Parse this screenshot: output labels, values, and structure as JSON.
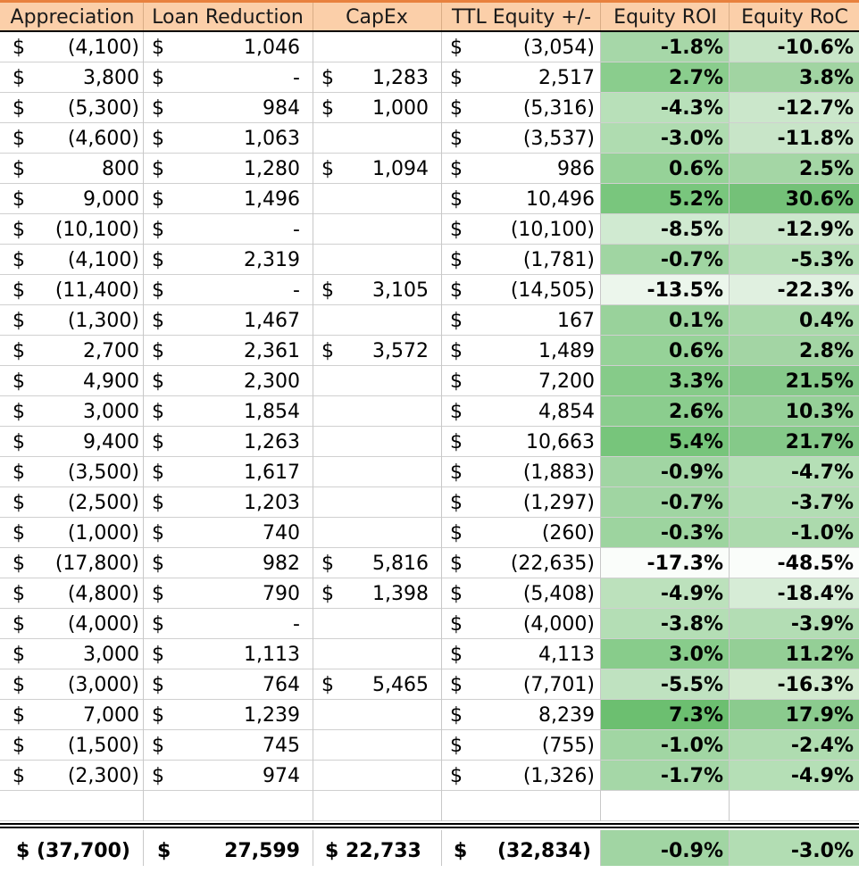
{
  "headers": [
    "Appreciation",
    "Loan Reduction",
    "CapEx",
    "TTL Equity +/-",
    "Equity ROI",
    "Equity RoC"
  ],
  "currency_symbol": "$",
  "rows": [
    {
      "appreciation": "(4,100)",
      "loan_reduction": "1,046",
      "capex": "",
      "equity": "(3,054)",
      "roi": "-1.8%",
      "roc": "-10.6%",
      "roi_color": "#a6d7a8",
      "roc_color": "#c7e5c7"
    },
    {
      "appreciation": "3,800",
      "loan_reduction": "-",
      "capex": "1,283",
      "equity": "2,517",
      "roi": "2.7%",
      "roc": "3.8%",
      "roi_color": "#8acd8d",
      "roc_color": "#a1d4a2"
    },
    {
      "appreciation": "(5,300)",
      "loan_reduction": "984",
      "capex": "1,000",
      "equity": "(5,316)",
      "roi": "-4.3%",
      "roc": "-12.7%",
      "roi_color": "#b8e0b9",
      "roc_color": "#cbe7cb"
    },
    {
      "appreciation": "(4,600)",
      "loan_reduction": "1,063",
      "capex": "",
      "equity": "(3,537)",
      "roi": "-3.0%",
      "roc": "-11.8%",
      "roi_color": "#afdcb0",
      "roc_color": "#c8e5c8"
    },
    {
      "appreciation": "800",
      "loan_reduction": "1,280",
      "capex": "1,094",
      "equity": "986",
      "roi": "0.6%",
      "roc": "2.5%",
      "roi_color": "#96d298",
      "roc_color": "#a4d6a5"
    },
    {
      "appreciation": "9,000",
      "loan_reduction": "1,496",
      "capex": "",
      "equity": "10,496",
      "roi": "5.2%",
      "roc": "30.6%",
      "roi_color": "#79c67d",
      "roc_color": "#74c178"
    },
    {
      "appreciation": "(10,100)",
      "loan_reduction": "-",
      "capex": "",
      "equity": "(10,100)",
      "roi": "-8.5%",
      "roc": "-12.9%",
      "roi_color": "#d0ead1",
      "roc_color": "#cce7cc"
    },
    {
      "appreciation": "(4,100)",
      "loan_reduction": "2,319",
      "capex": "",
      "equity": "(1,781)",
      "roi": "-0.7%",
      "roc": "-5.3%",
      "roi_color": "#a0d5a2",
      "roc_color": "#b6dfb7"
    },
    {
      "appreciation": "(11,400)",
      "loan_reduction": "-",
      "capex": "3,105",
      "equity": "(14,505)",
      "roi": "-13.5%",
      "roc": "-22.3%",
      "roi_color": "#ecf6ec",
      "roc_color": "#e0f0e0"
    },
    {
      "appreciation": "(1,300)",
      "loan_reduction": "1,467",
      "capex": "",
      "equity": "167",
      "roi": "0.1%",
      "roc": "0.4%",
      "roi_color": "#99d29b",
      "roc_color": "#a9d9aa"
    },
    {
      "appreciation": "2,700",
      "loan_reduction": "2,361",
      "capex": "3,572",
      "equity": "1,489",
      "roi": "0.6%",
      "roc": "2.8%",
      "roi_color": "#96d298",
      "roc_color": "#a3d5a4"
    },
    {
      "appreciation": "4,900",
      "loan_reduction": "2,300",
      "capex": "",
      "equity": "7,200",
      "roi": "3.3%",
      "roc": "21.5%",
      "roi_color": "#86cb89",
      "roc_color": "#86c98a"
    },
    {
      "appreciation": "3,000",
      "loan_reduction": "1,854",
      "capex": "",
      "equity": "4,854",
      "roi": "2.6%",
      "roc": "10.3%",
      "roi_color": "#8bcd8e",
      "roc_color": "#96d098"
    },
    {
      "appreciation": "9,400",
      "loan_reduction": "1,263",
      "capex": "",
      "equity": "10,663",
      "roi": "5.4%",
      "roc": "21.7%",
      "roi_color": "#77c57b",
      "roc_color": "#85c989"
    },
    {
      "appreciation": "(3,500)",
      "loan_reduction": "1,617",
      "capex": "",
      "equity": "(1,883)",
      "roi": "-0.9%",
      "roc": "-4.7%",
      "roi_color": "#a1d5a3",
      "roc_color": "#b5dfb6"
    },
    {
      "appreciation": "(2,500)",
      "loan_reduction": "1,203",
      "capex": "",
      "equity": "(1,297)",
      "roi": "-0.7%",
      "roc": "-3.7%",
      "roi_color": "#a0d5a2",
      "roc_color": "#b2ddb3"
    },
    {
      "appreciation": "(1,000)",
      "loan_reduction": "740",
      "capex": "",
      "equity": "(260)",
      "roi": "-0.3%",
      "roc": "-1.0%",
      "roi_color": "#9dd49f",
      "roc_color": "#acdaad"
    },
    {
      "appreciation": "(17,800)",
      "loan_reduction": "982",
      "capex": "5,816",
      "equity": "(22,635)",
      "roi": "-17.3%",
      "roc": "-48.5%",
      "roi_color": "#fafdfa",
      "roc_color": "#fafdfa"
    },
    {
      "appreciation": "(4,800)",
      "loan_reduction": "790",
      "capex": "1,398",
      "equity": "(5,408)",
      "roi": "-4.9%",
      "roc": "-18.4%",
      "roi_color": "#bce1bc",
      "roc_color": "#d6ecd6"
    },
    {
      "appreciation": "(4,000)",
      "loan_reduction": "-",
      "capex": "",
      "equity": "(4,000)",
      "roi": "-3.8%",
      "roc": "-3.9%",
      "roi_color": "#b4deb5",
      "roc_color": "#b3ddb4"
    },
    {
      "appreciation": "3,000",
      "loan_reduction": "1,113",
      "capex": "",
      "equity": "4,113",
      "roi": "3.0%",
      "roc": "11.2%",
      "roi_color": "#88cc8b",
      "roc_color": "#94cf96"
    },
    {
      "appreciation": "(3,000)",
      "loan_reduction": "764",
      "capex": "5,465",
      "equity": "(7,701)",
      "roi": "-5.5%",
      "roc": "-16.3%",
      "roi_color": "#bfe2c0",
      "roc_color": "#d2eacf"
    },
    {
      "appreciation": "7,000",
      "loan_reduction": "1,239",
      "capex": "",
      "equity": "8,239",
      "roi": "7.3%",
      "roc": "17.9%",
      "roi_color": "#6cbf70",
      "roc_color": "#8bcb8e"
    },
    {
      "appreciation": "(1,500)",
      "loan_reduction": "745",
      "capex": "",
      "equity": "(755)",
      "roi": "-1.0%",
      "roc": "-2.4%",
      "roi_color": "#a1d6a3",
      "roc_color": "#afdcb0"
    },
    {
      "appreciation": "(2,300)",
      "loan_reduction": "974",
      "capex": "",
      "equity": "(1,326)",
      "roi": "-1.7%",
      "roc": "-4.9%",
      "roi_color": "#a5d7a7",
      "roc_color": "#b5dfb6"
    }
  ],
  "totals": {
    "appreciation": "$ (37,700)",
    "loan_reduction": "27,599",
    "capex": "$ 22,733",
    "equity": "(32,834)",
    "roi": "-0.9%",
    "roc": "-3.0%",
    "roi_color": "#a1d5a3",
    "roc_color": "#b2ddb3"
  },
  "colors": {
    "header_bg": "#fbcfa9",
    "accent_line": "#e8813e"
  }
}
